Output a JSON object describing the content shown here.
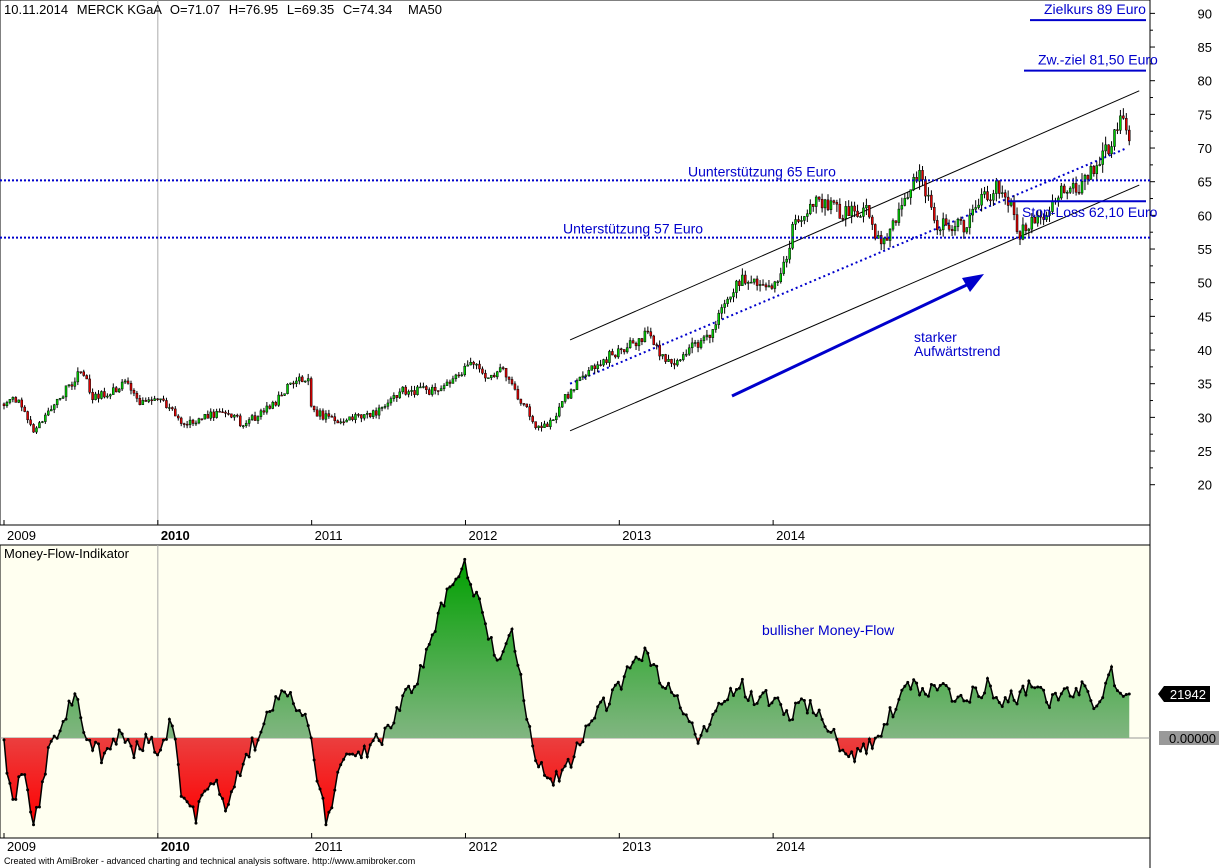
{
  "chart_data": [
    {
      "type": "candlestick",
      "header": {
        "date": "10.11.2014",
        "symbol": "MERCK KGaA",
        "open": "O=71.07",
        "high": "H=76.95",
        "low": "L=69.35",
        "close": "C=74.34",
        "indicator": "MA50"
      },
      "x_ticks": [
        "2009",
        "2010",
        "2011",
        "2012",
        "2013",
        "2014"
      ],
      "y_ticks": [
        20,
        25,
        30,
        35,
        40,
        45,
        50,
        55,
        60,
        65,
        70,
        75,
        80,
        85,
        90
      ],
      "ylim": [
        15.5,
        90.5
      ],
      "price_keypoints": [
        [
          2009.0,
          32
        ],
        [
          2009.1,
          33
        ],
        [
          2009.18,
          28
        ],
        [
          2009.3,
          31
        ],
        [
          2009.4,
          34
        ],
        [
          2009.5,
          37
        ],
        [
          2009.58,
          33
        ],
        [
          2009.7,
          34
        ],
        [
          2009.8,
          35
        ],
        [
          2009.9,
          32
        ],
        [
          2010.0,
          33
        ],
        [
          2010.1,
          31
        ],
        [
          2010.15,
          29
        ],
        [
          2010.3,
          30
        ],
        [
          2010.45,
          31
        ],
        [
          2010.55,
          29
        ],
        [
          2010.7,
          31
        ],
        [
          2010.8,
          33
        ],
        [
          2010.9,
          36
        ],
        [
          2010.98,
          36
        ],
        [
          2011.0,
          31
        ],
        [
          2011.15,
          29.5
        ],
        [
          2011.3,
          30
        ],
        [
          2011.45,
          31
        ],
        [
          2011.6,
          34
        ],
        [
          2011.8,
          34
        ],
        [
          2011.95,
          36
        ],
        [
          2012.05,
          38
        ],
        [
          2012.15,
          36
        ],
        [
          2012.25,
          37
        ],
        [
          2012.35,
          33
        ],
        [
          2012.45,
          29
        ],
        [
          2012.55,
          29
        ],
        [
          2012.65,
          33
        ],
        [
          2012.8,
          37
        ],
        [
          2013.0,
          40
        ],
        [
          2013.1,
          41
        ],
        [
          2013.2,
          43
        ],
        [
          2013.25,
          40
        ],
        [
          2013.35,
          37
        ],
        [
          2013.45,
          40
        ],
        [
          2013.6,
          42
        ],
        [
          2013.7,
          48
        ],
        [
          2013.8,
          51
        ],
        [
          2013.95,
          49
        ],
        [
          2014.05,
          51
        ],
        [
          2014.15,
          60
        ],
        [
          2014.3,
          62
        ],
        [
          2014.45,
          60
        ],
        [
          2014.6,
          61
        ],
        [
          2014.7,
          55
        ],
        [
          2014.85,
          62
        ],
        [
          2014.95,
          66
        ],
        [
          2015.05,
          59
        ],
        [
          2015.15,
          59
        ],
        [
          2015.25,
          58
        ],
        [
          2015.35,
          62
        ],
        [
          2015.45,
          64
        ],
        [
          2015.55,
          61
        ],
        [
          2015.6,
          57
        ],
        [
          2015.75,
          60
        ],
        [
          2015.9,
          64
        ],
        [
          2016.0,
          64
        ],
        [
          2016.12,
          68
        ],
        [
          2016.2,
          71
        ],
        [
          2016.27,
          74
        ],
        [
          2016.33,
          71
        ]
      ],
      "lines": [
        {
          "label": "Unterstützung 57 Euro",
          "y": 56.7
        },
        {
          "label": "Uunterstützung 65 Euro",
          "y": 65.2
        },
        {
          "label": "Stop-Loss 62,10 Euro",
          "y": 62.1
        },
        {
          "label": "Zw.-ziel 81,50 Euro",
          "y": 81.5
        },
        {
          "label": "Zielkurs 89 Euro",
          "y": 89
        }
      ],
      "channel": {
        "upper": [
          [
            2012.68,
            41.5
          ],
          [
            2016.38,
            78.5
          ]
        ],
        "lower": [
          [
            2012.68,
            28
          ],
          [
            2016.38,
            64.5
          ]
        ],
        "middle": [
          [
            2012.68,
            35
          ],
          [
            2016.3,
            70
          ]
        ]
      },
      "annotation": {
        "text_line1": "starker",
        "text_line2": "Aufwärtstrend"
      }
    },
    {
      "type": "area",
      "title": "Money-Flow-Indikator",
      "zero_label": "0.00000",
      "last_value_label": "21942",
      "annotation": "bullisher Money-Flow",
      "x_ticks": [
        "2009",
        "2010",
        "2011",
        "2012",
        "2013",
        "2014"
      ],
      "mf_keypoints": [
        [
          2009.0,
          -2
        ],
        [
          2009.05,
          -15
        ],
        [
          2009.12,
          -8
        ],
        [
          2009.2,
          -20
        ],
        [
          2009.28,
          -5
        ],
        [
          2009.35,
          2
        ],
        [
          2009.45,
          10
        ],
        [
          2009.55,
          0
        ],
        [
          2009.65,
          -5
        ],
        [
          2009.75,
          2
        ],
        [
          2009.85,
          -3
        ],
        [
          2009.95,
          0
        ],
        [
          2010.0,
          -5
        ],
        [
          2010.05,
          0
        ],
        [
          2010.1,
          5
        ],
        [
          2010.15,
          -15
        ],
        [
          2010.25,
          -18
        ],
        [
          2010.35,
          -8
        ],
        [
          2010.45,
          -18
        ],
        [
          2010.55,
          -5
        ],
        [
          2010.65,
          0
        ],
        [
          2010.75,
          8
        ],
        [
          2010.85,
          10
        ],
        [
          2010.95,
          5
        ],
        [
          2011.0,
          -2
        ],
        [
          2011.1,
          -20
        ],
        [
          2011.2,
          -5
        ],
        [
          2011.35,
          -3
        ],
        [
          2011.45,
          0
        ],
        [
          2011.55,
          5
        ],
        [
          2011.6,
          10
        ],
        [
          2011.7,
          15
        ],
        [
          2011.8,
          25
        ],
        [
          2011.9,
          36
        ],
        [
          2012.0,
          40
        ],
        [
          2012.1,
          30
        ],
        [
          2012.2,
          18
        ],
        [
          2012.3,
          25
        ],
        [
          2012.45,
          -5
        ],
        [
          2012.55,
          -10
        ],
        [
          2012.65,
          -8
        ],
        [
          2012.75,
          0
        ],
        [
          2012.85,
          5
        ],
        [
          2012.95,
          10
        ],
        [
          2013.05,
          15
        ],
        [
          2013.15,
          20
        ],
        [
          2013.25,
          15
        ],
        [
          2013.35,
          10
        ],
        [
          2013.45,
          5
        ],
        [
          2013.5,
          0
        ],
        [
          2013.6,
          5
        ],
        [
          2013.7,
          10
        ],
        [
          2013.8,
          12
        ],
        [
          2013.9,
          8
        ],
        [
          2014.0,
          10
        ],
        [
          2014.1,
          5
        ],
        [
          2014.2,
          8
        ],
        [
          2014.3,
          5
        ],
        [
          2014.4,
          0
        ],
        [
          2014.5,
          -5
        ],
        [
          2014.6,
          -3
        ],
        [
          2014.7,
          2
        ],
        [
          2014.8,
          8
        ],
        [
          2014.9,
          12
        ],
        [
          2015.0,
          10
        ],
        [
          2015.1,
          12
        ],
        [
          2015.2,
          8
        ],
        [
          2015.3,
          10
        ],
        [
          2015.4,
          12
        ],
        [
          2015.5,
          8
        ],
        [
          2015.6,
          10
        ],
        [
          2015.7,
          12
        ],
        [
          2015.8,
          8
        ],
        [
          2015.9,
          10
        ],
        [
          2016.0,
          12
        ],
        [
          2016.1,
          8
        ],
        [
          2016.2,
          15
        ],
        [
          2016.27,
          8
        ],
        [
          2016.33,
          10
        ]
      ]
    }
  ],
  "footer": "Created with AmiBroker - advanced charting and technical analysis software. http://www.amibroker.com"
}
